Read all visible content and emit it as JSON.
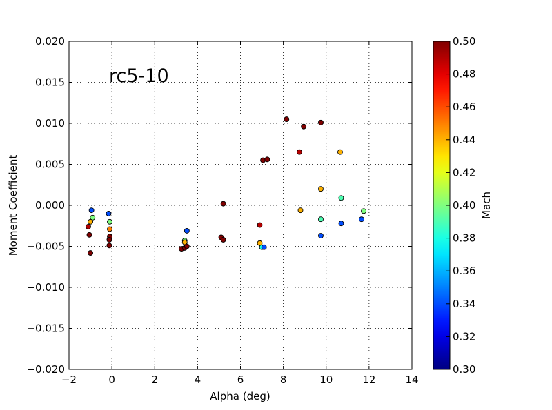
{
  "chart_data": {
    "type": "scatter",
    "title": "rc5-10",
    "xlabel": "Alpha (deg)",
    "ylabel": "Moment Coefficient",
    "xlim": [
      -2,
      14
    ],
    "ylim": [
      -0.02,
      0.02
    ],
    "x_ticks": [
      -2,
      0,
      2,
      4,
      6,
      8,
      10,
      12,
      14
    ],
    "x_tick_labels": [
      "−2",
      "0",
      "2",
      "4",
      "6",
      "8",
      "10",
      "12",
      "14"
    ],
    "y_ticks": [
      -0.02,
      -0.015,
      -0.01,
      -0.005,
      0.0,
      0.005,
      0.01,
      0.015,
      0.02
    ],
    "y_tick_labels": [
      "−0.020",
      "−0.015",
      "−0.010",
      "−0.005",
      "0.000",
      "0.005",
      "0.010",
      "0.015",
      "0.020"
    ],
    "grid": true,
    "grid_style": "dotted",
    "colorbar": {
      "label": "Mach",
      "range": [
        0.3,
        0.5
      ],
      "colormap": "jet",
      "ticks": [
        0.3,
        0.32,
        0.34,
        0.36,
        0.38,
        0.4,
        0.42,
        0.44,
        0.46,
        0.48,
        0.5
      ],
      "tick_labels": [
        "0.30",
        "0.32",
        "0.34",
        "0.36",
        "0.38",
        "0.40",
        "0.42",
        "0.44",
        "0.46",
        "0.48",
        "0.50"
      ]
    },
    "points": [
      {
        "x": -0.95,
        "y": -0.0006,
        "mach": 0.34
      },
      {
        "x": -0.9,
        "y": -0.0015,
        "mach": 0.4
      },
      {
        "x": -1.0,
        "y": -0.002,
        "mach": 0.44
      },
      {
        "x": -1.1,
        "y": -0.0026,
        "mach": 0.49
      },
      {
        "x": -1.05,
        "y": -0.0036,
        "mach": 0.5
      },
      {
        "x": -1.0,
        "y": -0.0058,
        "mach": 0.5
      },
      {
        "x": -0.15,
        "y": -0.001,
        "mach": 0.34
      },
      {
        "x": -0.1,
        "y": -0.002,
        "mach": 0.4
      },
      {
        "x": -0.1,
        "y": -0.0029,
        "mach": 0.45
      },
      {
        "x": -0.1,
        "y": -0.0038,
        "mach": 0.5
      },
      {
        "x": -0.12,
        "y": -0.0042,
        "mach": 0.5
      },
      {
        "x": -0.12,
        "y": -0.0049,
        "mach": 0.5
      },
      {
        "x": 3.5,
        "y": -0.0031,
        "mach": 0.34
      },
      {
        "x": 3.4,
        "y": -0.0043,
        "mach": 0.4
      },
      {
        "x": 3.4,
        "y": -0.0045,
        "mach": 0.44
      },
      {
        "x": 3.25,
        "y": -0.0053,
        "mach": 0.5
      },
      {
        "x": 3.4,
        "y": -0.0052,
        "mach": 0.5
      },
      {
        "x": 3.5,
        "y": -0.005,
        "mach": 0.5
      },
      {
        "x": 5.2,
        "y": 0.0002,
        "mach": 0.5
      },
      {
        "x": 5.1,
        "y": -0.0039,
        "mach": 0.5
      },
      {
        "x": 5.2,
        "y": -0.0042,
        "mach": 0.5
      },
      {
        "x": 6.9,
        "y": -0.0024,
        "mach": 0.49
      },
      {
        "x": 6.9,
        "y": -0.0046,
        "mach": 0.44
      },
      {
        "x": 7.0,
        "y": -0.0051,
        "mach": 0.38
      },
      {
        "x": 7.1,
        "y": -0.0051,
        "mach": 0.34
      },
      {
        "x": 7.05,
        "y": 0.0055,
        "mach": 0.5
      },
      {
        "x": 7.25,
        "y": 0.0056,
        "mach": 0.5
      },
      {
        "x": 8.15,
        "y": 0.0105,
        "mach": 0.5
      },
      {
        "x": 8.95,
        "y": 0.0096,
        "mach": 0.5
      },
      {
        "x": 8.75,
        "y": 0.0065,
        "mach": 0.49
      },
      {
        "x": 8.8,
        "y": -0.0006,
        "mach": 0.44
      },
      {
        "x": 9.75,
        "y": 0.0101,
        "mach": 0.5
      },
      {
        "x": 9.75,
        "y": 0.002,
        "mach": 0.44
      },
      {
        "x": 9.75,
        "y": -0.0017,
        "mach": 0.39
      },
      {
        "x": 9.75,
        "y": -0.0037,
        "mach": 0.34
      },
      {
        "x": 10.65,
        "y": 0.0065,
        "mach": 0.44
      },
      {
        "x": 10.7,
        "y": 0.0009,
        "mach": 0.39
      },
      {
        "x": 10.7,
        "y": -0.0022,
        "mach": 0.34
      },
      {
        "x": 11.75,
        "y": -0.0007,
        "mach": 0.4
      },
      {
        "x": 11.65,
        "y": -0.0017,
        "mach": 0.34
      }
    ]
  }
}
